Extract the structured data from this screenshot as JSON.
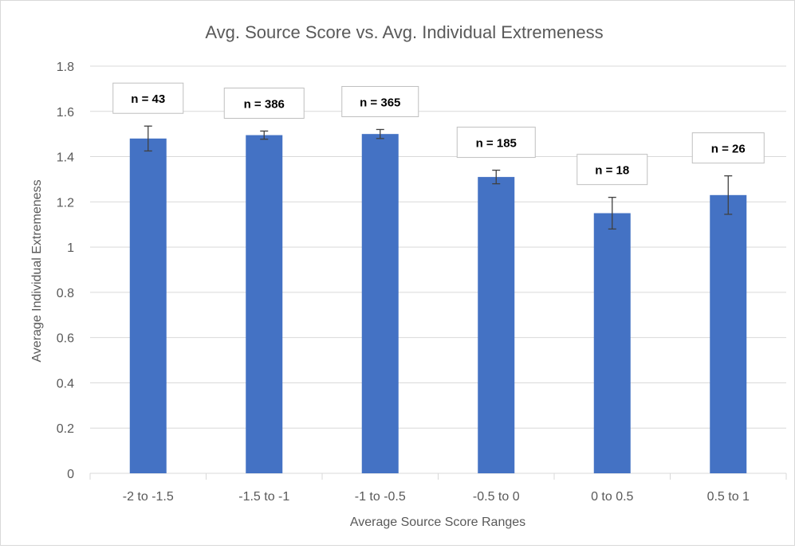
{
  "chart_data": {
    "type": "bar",
    "title": "Avg. Source Score vs. Avg. Individual Extremeness",
    "xlabel": "Average Source Score Ranges",
    "ylabel": "Average Individual Extremeness",
    "categories": [
      "-2 to -1.5",
      "-1.5 to -1",
      "-1 to -0.5",
      "-0.5 to 0",
      "0 to 0.5",
      "0.5 to 1"
    ],
    "values": [
      1.48,
      1.495,
      1.5,
      1.31,
      1.15,
      1.23
    ],
    "error": [
      0.055,
      0.018,
      0.02,
      0.03,
      0.07,
      0.085
    ],
    "annotations": [
      "n = 43",
      "n = 386",
      "n = 365",
      "n = 185",
      "n = 18",
      "n = 26"
    ],
    "ylim": [
      0,
      1.8
    ],
    "yticks": [
      "0",
      "0.2",
      "0.4",
      "0.6",
      "0.8",
      "1",
      "1.2",
      "1.4",
      "1.6",
      "1.8"
    ],
    "grid": true,
    "bar_color": "#4472c4",
    "grid_color": "#d9d9d9",
    "legend": "none"
  }
}
